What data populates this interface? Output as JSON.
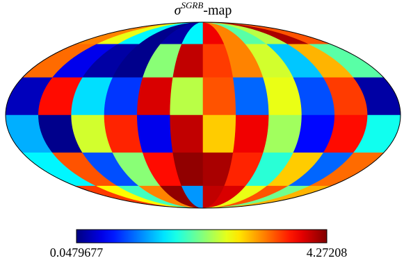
{
  "chart_data": {
    "type": "mollweide",
    "title": {
      "base": "σ",
      "superscript": "SGRB",
      "suffix": "-map"
    },
    "colormap": "jet",
    "clim": [
      0.0479677,
      4.27208
    ],
    "values": [
      [
        3.2,
        2.6,
        1.6,
        0.1,
        0.2,
        1.6,
        3.8,
        3.2,
        2.0,
        2.4,
        4.1,
        3.4
      ],
      [
        3.3,
        0.5,
        0.2,
        0.1,
        2.2,
        4.0,
        3.5,
        3.2,
        2.5,
        1.4,
        3.0,
        2.0
      ],
      [
        0.3,
        3.7,
        1.5,
        0.8,
        3.9,
        2.4,
        3.4,
        1.0,
        2.6,
        0.9,
        3.5,
        0.2
      ],
      [
        1.3,
        0.1,
        2.5,
        3.6,
        0.5,
        4.0,
        2.9,
        3.8,
        2.3,
        0.6,
        3.7,
        1.7
      ],
      [
        1.6,
        3.4,
        0.9,
        2.2,
        3.7,
        4.2,
        4.1,
        3.6,
        1.8,
        2.9,
        1.0,
        3.3
      ],
      [
        3.5,
        2.7,
        1.9,
        3.2,
        4.2,
        1.2,
        4.0,
        3.9,
        2.6,
        3.4,
        2.1,
        3.0
      ]
    ]
  }
}
